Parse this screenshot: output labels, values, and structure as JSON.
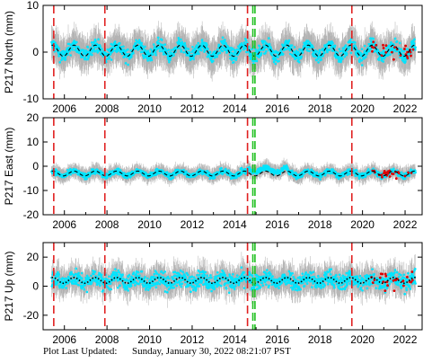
{
  "chart_data": [
    {
      "type": "scatter",
      "ylabel": "P217 North (mm)",
      "xlim": [
        2005.0,
        2022.8
      ],
      "ylim": [
        -10,
        10
      ],
      "yticks": [
        -10,
        0,
        10
      ],
      "xticks": [
        2006,
        2008,
        2010,
        2012,
        2014,
        2016,
        2018,
        2020,
        2022
      ],
      "xtick_labels": [
        "2006",
        "2008",
        "2010",
        "2012",
        "2014",
        "2016",
        "2018",
        "2020",
        "2022"
      ],
      "show_xtick_labels": true,
      "marker_color": "#00e5ff",
      "error_bar_color": "#b0b0b0",
      "outlier_color": "#dd0000",
      "model_color": "#000000",
      "model_style": "dashed",
      "model": {
        "offset": 0.3,
        "amplitude": 1.2
      },
      "noise": {
        "scatter_mm": 1.0,
        "error_bar_mm": 3.0
      },
      "step_lines": [
        2005.5,
        2007.9,
        2014.6,
        2019.5
      ],
      "equipment_lines": [
        2014.85,
        2014.95
      ]
    },
    {
      "type": "scatter",
      "ylabel": "P217 East (mm)",
      "xlim": [
        2005.0,
        2022.8
      ],
      "ylim": [
        -20,
        20
      ],
      "yticks": [
        -20,
        -10,
        0,
        10,
        20
      ],
      "xticks": [
        2006,
        2008,
        2010,
        2012,
        2014,
        2016,
        2018,
        2020,
        2022
      ],
      "xtick_labels": [
        "2006",
        "2008",
        "2010",
        "2012",
        "2014",
        "2016",
        "2018",
        "2020",
        "2022"
      ],
      "show_xtick_labels": true,
      "marker_color": "#00e5ff",
      "error_bar_color": "#b0b0b0",
      "outlier_color": "#dd0000",
      "model_color": "#000000",
      "model_style": "dashed",
      "model": {
        "offset": -3.0,
        "amplitude": 1.0
      },
      "noise": {
        "scatter_mm": 0.8,
        "error_bar_mm": 2.5
      },
      "step_lines": [
        2005.5,
        2007.9,
        2014.6,
        2019.5
      ],
      "equipment_lines": [
        2014.85,
        2014.95
      ]
    },
    {
      "type": "scatter",
      "ylabel": "P217 Up (mm)",
      "xlim": [
        2005.0,
        2022.8
      ],
      "ylim": [
        -30,
        30
      ],
      "yticks": [
        -20,
        0,
        20
      ],
      "xticks": [
        2006,
        2008,
        2010,
        2012,
        2014,
        2016,
        2018,
        2020,
        2022
      ],
      "xtick_labels": [
        "2006",
        "2008",
        "2010",
        "2012",
        "2014",
        "2016",
        "2018",
        "2020",
        "2022"
      ],
      "show_xtick_labels": true,
      "marker_color": "#00e5ff",
      "error_bar_color": "#b0b0b0",
      "outlier_color": "#dd0000",
      "model_color": "#000000",
      "model_style": "dotted",
      "model": {
        "offset": 4.0,
        "amplitude": 2.0
      },
      "noise": {
        "scatter_mm": 4.0,
        "error_bar_mm": 8.0
      },
      "step_lines": [
        2005.5,
        2007.9,
        2014.6,
        2019.5
      ],
      "equipment_lines": [
        2014.85,
        2014.95
      ]
    }
  ],
  "footer": {
    "label": "Plot Last Updated:",
    "date": "Sunday, January 30, 2022 08:21:07 PST"
  }
}
